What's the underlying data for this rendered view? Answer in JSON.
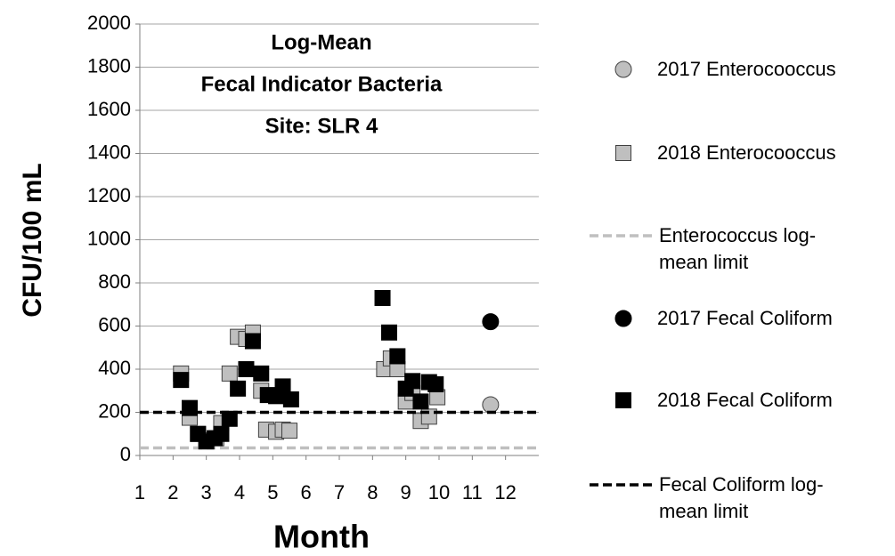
{
  "chart_data": {
    "type": "scatter",
    "title": [
      "Log-Mean",
      "Fecal Indicator Bacteria",
      "Site: SLR 4"
    ],
    "xlabel": "Month",
    "ylabel": "CFU/100 mL",
    "xlim": [
      1,
      13
    ],
    "xticks": [
      1,
      2,
      3,
      4,
      5,
      6,
      7,
      8,
      9,
      10,
      11,
      12
    ],
    "ylim": [
      0,
      2000
    ],
    "yticks": [
      0,
      200,
      400,
      600,
      800,
      1000,
      1200,
      1400,
      1600,
      1800,
      2000
    ],
    "grid": true,
    "legend": "right",
    "series": [
      {
        "name": "2017 Enterocooccus",
        "color": "#bfbfbf",
        "marker": "circle",
        "x": [
          11.55
        ],
        "values": [
          235
        ]
      },
      {
        "name": "2018 Enterocooccus",
        "color": "#bfbfbf",
        "marker": "square",
        "x": [
          2.24,
          2.5,
          2.75,
          3.0,
          3.3,
          3.45,
          3.7,
          3.95,
          4.2,
          4.4,
          4.65,
          4.8,
          5.1,
          5.3,
          5.5,
          8.35,
          8.55,
          8.75,
          9.0,
          9.2,
          9.45,
          9.7,
          9.95
        ],
        "values": [
          380,
          175,
          100,
          70,
          80,
          150,
          380,
          550,
          540,
          570,
          300,
          120,
          110,
          120,
          115,
          400,
          450,
          400,
          250,
          290,
          160,
          180,
          270
        ]
      },
      {
        "name": "Enterococcus log-mean limit",
        "color": "#bfbfbf",
        "marker": "dashed-line",
        "y": 35
      },
      {
        "name": "2017 Fecal Coliform",
        "color": "#000000",
        "marker": "circle",
        "x": [
          11.55
        ],
        "values": [
          620
        ]
      },
      {
        "name": "2018 Fecal Coliform",
        "color": "#000000",
        "marker": "square",
        "x": [
          2.24,
          2.5,
          2.75,
          3.0,
          3.25,
          3.45,
          3.7,
          3.95,
          4.2,
          4.4,
          4.65,
          4.85,
          5.1,
          5.3,
          5.55,
          8.3,
          8.5,
          8.75,
          9.0,
          9.2,
          9.45,
          9.7,
          9.9
        ],
        "values": [
          350,
          220,
          100,
          65,
          80,
          100,
          170,
          310,
          400,
          530,
          380,
          280,
          275,
          320,
          260,
          730,
          570,
          460,
          310,
          345,
          250,
          340,
          330
        ]
      },
      {
        "name": "Fecal Coliform log-mean limit",
        "color": "#000000",
        "marker": "dashed-line",
        "y": 200
      }
    ]
  }
}
